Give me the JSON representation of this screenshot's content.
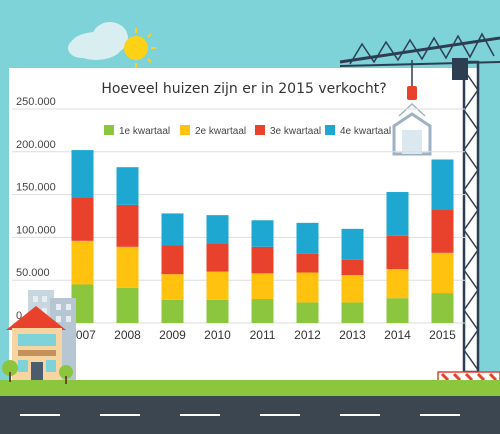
{
  "chart_data": {
    "type": "bar",
    "stacked": true,
    "title": "Hoeveel huizen zijn er in 2015 verkocht?",
    "categories": [
      "2007",
      "2008",
      "2009",
      "2010",
      "2011",
      "2012",
      "2013",
      "2014",
      "2015"
    ],
    "series": [
      {
        "name": "1e kwartaal",
        "color": "#8cc63f",
        "values": [
          45000,
          41000,
          27000,
          27000,
          28000,
          24000,
          24000,
          29000,
          35000
        ]
      },
      {
        "name": "2e kwartaal",
        "color": "#ffc20e",
        "values": [
          51000,
          48000,
          30000,
          33000,
          30000,
          35000,
          32000,
          34000,
          47000
        ]
      },
      {
        "name": "3e kwartaal",
        "color": "#e8412c",
        "values": [
          51000,
          49000,
          34000,
          33000,
          31000,
          22000,
          18000,
          39000,
          51000
        ]
      },
      {
        "name": "4e kwartaal",
        "color": "#1ea7d0",
        "values": [
          55000,
          44000,
          37000,
          33000,
          31000,
          36000,
          36000,
          51000,
          58000
        ]
      }
    ],
    "yticks": [
      "0",
      "50.000",
      "100.000",
      "150.000",
      "200.000",
      "250.000"
    ],
    "ylim": [
      0,
      250000
    ],
    "legend_position": "top",
    "grid": true
  }
}
